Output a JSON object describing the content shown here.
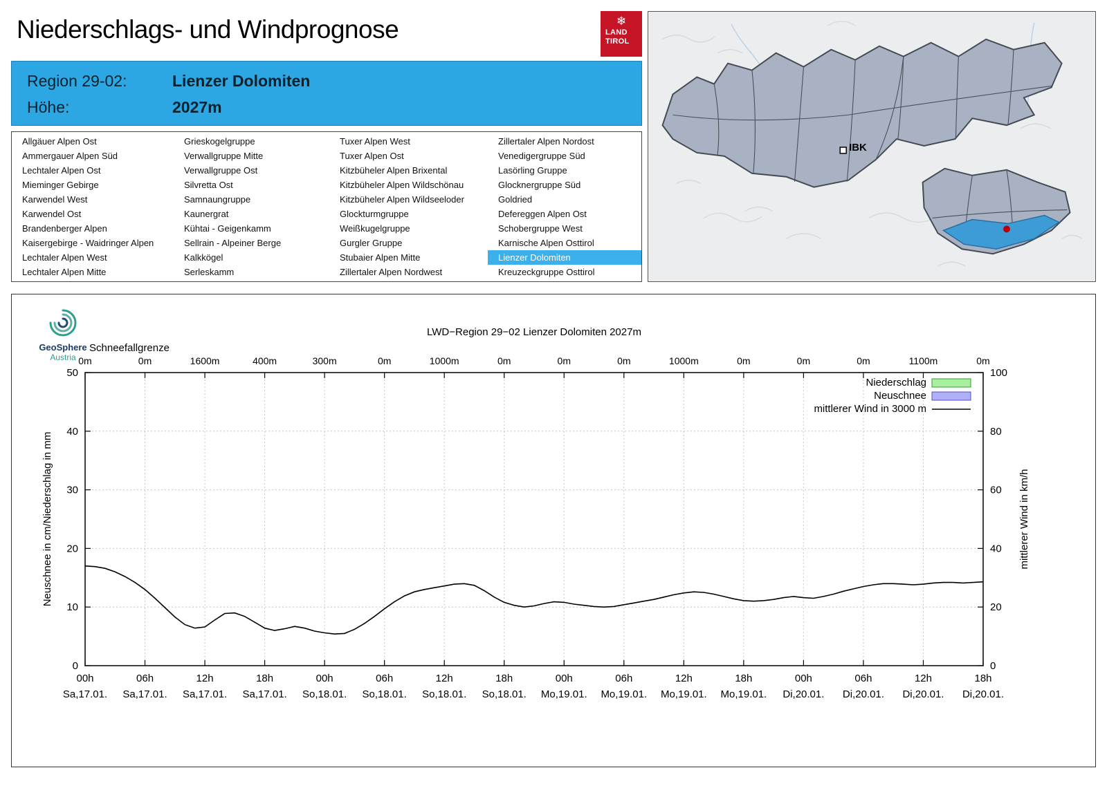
{
  "header": {
    "title": "Niederschlags- und Windprognose",
    "logo": {
      "line1": "LAND",
      "line2": "TIROL",
      "snowflake": "❄",
      "color": "#c41425"
    }
  },
  "banner": {
    "region_label": "Region 29-02:",
    "region_name": "Lienzer Dolomiten",
    "altitude_label": "Höhe:",
    "altitude_value": "2027m",
    "background": "#2da7e4"
  },
  "map": {
    "city_label": "IBK",
    "highlight_region": "Lienzer Dolomiten",
    "highlight_color": "#3d9bd5",
    "marker_color": "#c00000"
  },
  "region_table": {
    "selected": "Lienzer Dolomiten",
    "columns": [
      [
        "Allgäuer Alpen Ost",
        "Ammergauer Alpen Süd",
        "Lechtaler Alpen Ost",
        "Mieminger Gebirge",
        "Karwendel West",
        "Karwendel Ost",
        "Brandenberger Alpen",
        "Kaisergebirge - Waidringer Alpen",
        "Lechtaler Alpen West",
        "Lechtaler Alpen Mitte"
      ],
      [
        "Grieskogelgruppe",
        "Verwallgruppe Mitte",
        "Verwallgruppe Ost",
        "Silvretta Ost",
        "Samnaungruppe",
        "Kaunergrat",
        "Kühtai - Geigenkamm",
        "Sellrain - Alpeiner Berge",
        "Kalkkögel",
        "Serleskamm"
      ],
      [
        "Tuxer Alpen West",
        "Tuxer Alpen Ost",
        "Kitzbüheler Alpen Brixental",
        "Kitzbüheler Alpen Wildschönau",
        "Kitzbüheler Alpen Wildseeloder",
        "Glockturmgruppe",
        "Weißkugelgruppe",
        "Gurgler Gruppe",
        "Stubaier Alpen Mitte",
        "Zillertaler Alpen Nordwest"
      ],
      [
        "Zillertaler Alpen Nordost",
        "Venedigergruppe Süd",
        "Lasörling Gruppe",
        "Glocknergruppe Süd",
        "Goldried",
        "Defereggen Alpen Ost",
        "Schobergruppe West",
        "Karnische Alpen Osttirol",
        "Lienzer Dolomiten",
        "Kreuzeckgruppe Osttirol"
      ]
    ]
  },
  "branding": {
    "name": "GeoSphere",
    "country": "Austria"
  },
  "chart_data": {
    "type": "line",
    "title": "LWD−Region 29−02 Lienzer Dolomiten 2027m",
    "snowline_label": "Schneefallgrenze",
    "snowline_values": [
      "0m",
      "0m",
      "1600m",
      "400m",
      "300m",
      "0m",
      "1000m",
      "0m",
      "0m",
      "0m",
      "1000m",
      "0m",
      "0m",
      "0m",
      "1100m",
      "0m"
    ],
    "x_max_hours": 90,
    "x_tick_step_hours": 6,
    "x_ticks": [
      {
        "time": "00h",
        "date": "Sa,17.01."
      },
      {
        "time": "06h",
        "date": "Sa,17.01."
      },
      {
        "time": "12h",
        "date": "Sa,17.01."
      },
      {
        "time": "18h",
        "date": "Sa,17.01."
      },
      {
        "time": "00h",
        "date": "So,18.01."
      },
      {
        "time": "06h",
        "date": "So,18.01."
      },
      {
        "time": "12h",
        "date": "So,18.01."
      },
      {
        "time": "18h",
        "date": "So,18.01."
      },
      {
        "time": "00h",
        "date": "Mo,19.01."
      },
      {
        "time": "06h",
        "date": "Mo,19.01."
      },
      {
        "time": "12h",
        "date": "Mo,19.01."
      },
      {
        "time": "18h",
        "date": "Mo,19.01."
      },
      {
        "time": "00h",
        "date": "Di,20.01."
      },
      {
        "time": "06h",
        "date": "Di,20.01."
      },
      {
        "time": "12h",
        "date": "Di,20.01."
      },
      {
        "time": "18h",
        "date": "Di,20.01."
      }
    ],
    "left_axis": {
      "label": "Neuschnee in cm/Niederschlag in mm",
      "min": 0,
      "max": 50,
      "ticks": [
        0,
        10,
        20,
        30,
        40,
        50
      ]
    },
    "right_axis": {
      "label": "mittlerer Wind in km/h",
      "min": 0,
      "max": 100,
      "ticks": [
        0,
        20,
        40,
        60,
        80,
        100
      ]
    },
    "legend": [
      {
        "label": "Niederschlag",
        "type": "box",
        "fill": "#a8f0a0",
        "stroke": "#2ca02c"
      },
      {
        "label": "Neuschnee",
        "type": "box",
        "fill": "#b0b0f8",
        "stroke": "#5050c8"
      },
      {
        "label": "mittlerer Wind in 3000 m",
        "type": "line",
        "stroke": "#000000"
      }
    ],
    "series": [
      {
        "name": "Niederschlag",
        "unit": "mm",
        "values": []
      },
      {
        "name": "Neuschnee",
        "unit": "cm",
        "values": []
      },
      {
        "name": "mittlerer Wind in 3000 m",
        "unit": "km/h",
        "axis": "right",
        "x_step_hours": 1,
        "values": [
          34.0,
          33.8,
          33.2,
          32.0,
          30.4,
          28.4,
          26.0,
          23.0,
          19.8,
          16.6,
          14.0,
          12.8,
          13.2,
          15.6,
          17.8,
          18.0,
          16.8,
          14.8,
          12.8,
          12.0,
          12.6,
          13.4,
          12.8,
          11.8,
          11.2,
          10.8,
          11.0,
          12.4,
          14.4,
          16.8,
          19.4,
          21.8,
          23.8,
          25.2,
          26.0,
          26.6,
          27.2,
          27.8,
          28.0,
          27.4,
          25.6,
          23.4,
          21.6,
          20.6,
          20.0,
          20.4,
          21.2,
          21.8,
          21.6,
          21.0,
          20.6,
          20.2,
          20.0,
          20.2,
          20.8,
          21.4,
          22.0,
          22.6,
          23.4,
          24.2,
          24.8,
          25.2,
          25.0,
          24.4,
          23.6,
          22.8,
          22.2,
          22.0,
          22.2,
          22.6,
          23.2,
          23.6,
          23.2,
          23.0,
          23.6,
          24.4,
          25.4,
          26.2,
          27.0,
          27.6,
          28.0,
          28.0,
          27.8,
          27.6,
          27.8,
          28.2,
          28.4,
          28.4,
          28.2,
          28.4,
          28.6
        ]
      }
    ]
  }
}
